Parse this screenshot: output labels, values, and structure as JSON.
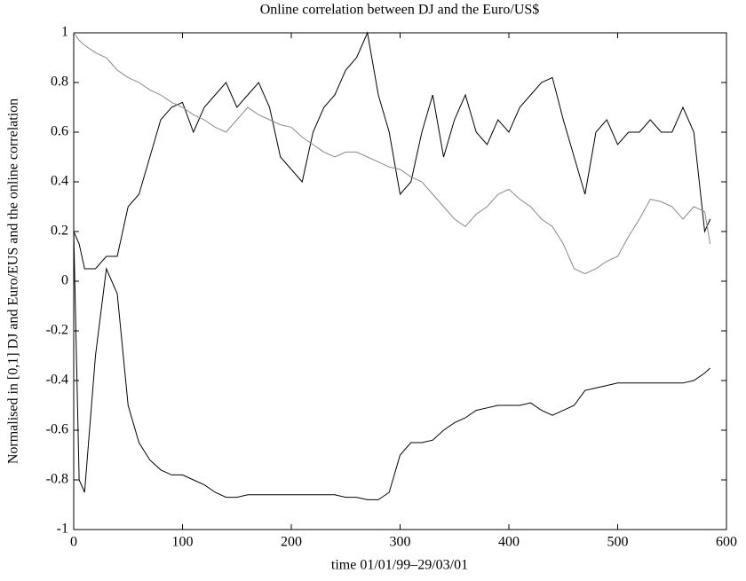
{
  "chart_data": {
    "type": "line",
    "title": "Online correlation between DJ and the Euro/US$",
    "xlabel": "time 01/01/99–29/03/01",
    "ylabel": "Normalised in [0,1] DJ and Euro/EUS and the online correlation",
    "x": [
      0,
      5,
      10,
      20,
      30,
      40,
      50,
      60,
      70,
      80,
      90,
      100,
      110,
      120,
      130,
      140,
      150,
      160,
      170,
      180,
      190,
      200,
      210,
      220,
      230,
      240,
      250,
      260,
      270,
      280,
      290,
      300,
      310,
      320,
      330,
      340,
      350,
      360,
      370,
      380,
      390,
      400,
      410,
      420,
      430,
      440,
      450,
      460,
      470,
      480,
      490,
      500,
      510,
      520,
      530,
      540,
      550,
      560,
      570,
      580,
      585
    ],
    "series": [
      {
        "color": "#000000",
        "values": [
          0.2,
          0.15,
          0.05,
          0.05,
          0.1,
          0.1,
          0.3,
          0.35,
          0.5,
          0.65,
          0.7,
          0.72,
          0.6,
          0.7,
          0.75,
          0.8,
          0.7,
          0.75,
          0.8,
          0.7,
          0.5,
          0.45,
          0.4,
          0.6,
          0.7,
          0.75,
          0.85,
          0.9,
          1.0,
          0.75,
          0.6,
          0.35,
          0.4,
          0.6,
          0.75,
          0.5,
          0.65,
          0.75,
          0.6,
          0.55,
          0.65,
          0.6,
          0.7,
          0.75,
          0.8,
          0.82,
          0.65,
          0.5,
          0.35,
          0.6,
          0.65,
          0.55,
          0.6,
          0.6,
          0.65,
          0.6,
          0.6,
          0.7,
          0.6,
          0.2,
          0.25
        ]
      },
      {
        "color": "#888888",
        "values": [
          1.0,
          0.97,
          0.95,
          0.92,
          0.9,
          0.85,
          0.82,
          0.8,
          0.77,
          0.75,
          0.72,
          0.7,
          0.67,
          0.65,
          0.62,
          0.6,
          0.65,
          0.7,
          0.67,
          0.65,
          0.63,
          0.62,
          0.58,
          0.55,
          0.52,
          0.5,
          0.52,
          0.52,
          0.5,
          0.48,
          0.46,
          0.45,
          0.42,
          0.4,
          0.35,
          0.3,
          0.25,
          0.22,
          0.27,
          0.3,
          0.35,
          0.37,
          0.33,
          0.3,
          0.25,
          0.22,
          0.15,
          0.05,
          0.03,
          0.05,
          0.08,
          0.1,
          0.18,
          0.25,
          0.33,
          0.32,
          0.3,
          0.25,
          0.3,
          0.28,
          0.15
        ]
      },
      {
        "color": "#000000",
        "values": [
          0.2,
          -0.8,
          -0.85,
          -0.3,
          0.05,
          -0.05,
          -0.5,
          -0.65,
          -0.72,
          -0.76,
          -0.78,
          -0.78,
          -0.8,
          -0.82,
          -0.85,
          -0.87,
          -0.87,
          -0.86,
          -0.86,
          -0.86,
          -0.86,
          -0.86,
          -0.86,
          -0.86,
          -0.86,
          -0.86,
          -0.87,
          -0.87,
          -0.88,
          -0.88,
          -0.85,
          -0.7,
          -0.65,
          -0.65,
          -0.64,
          -0.6,
          -0.57,
          -0.55,
          -0.52,
          -0.51,
          -0.5,
          -0.5,
          -0.5,
          -0.49,
          -0.52,
          -0.54,
          -0.52,
          -0.5,
          -0.44,
          -0.43,
          -0.42,
          -0.41,
          -0.41,
          -0.41,
          -0.41,
          -0.41,
          -0.41,
          -0.41,
          -0.4,
          -0.37,
          -0.35
        ]
      }
    ],
    "xlim": [
      0,
      600
    ],
    "xticks": [
      0,
      100,
      200,
      300,
      400,
      500,
      600
    ],
    "ylim": [
      -1,
      1
    ],
    "yticks": [
      -1,
      -0.8,
      -0.6,
      -0.4,
      -0.2,
      0,
      0.2,
      0.4,
      0.6,
      0.8,
      1
    ],
    "grid": false
  }
}
